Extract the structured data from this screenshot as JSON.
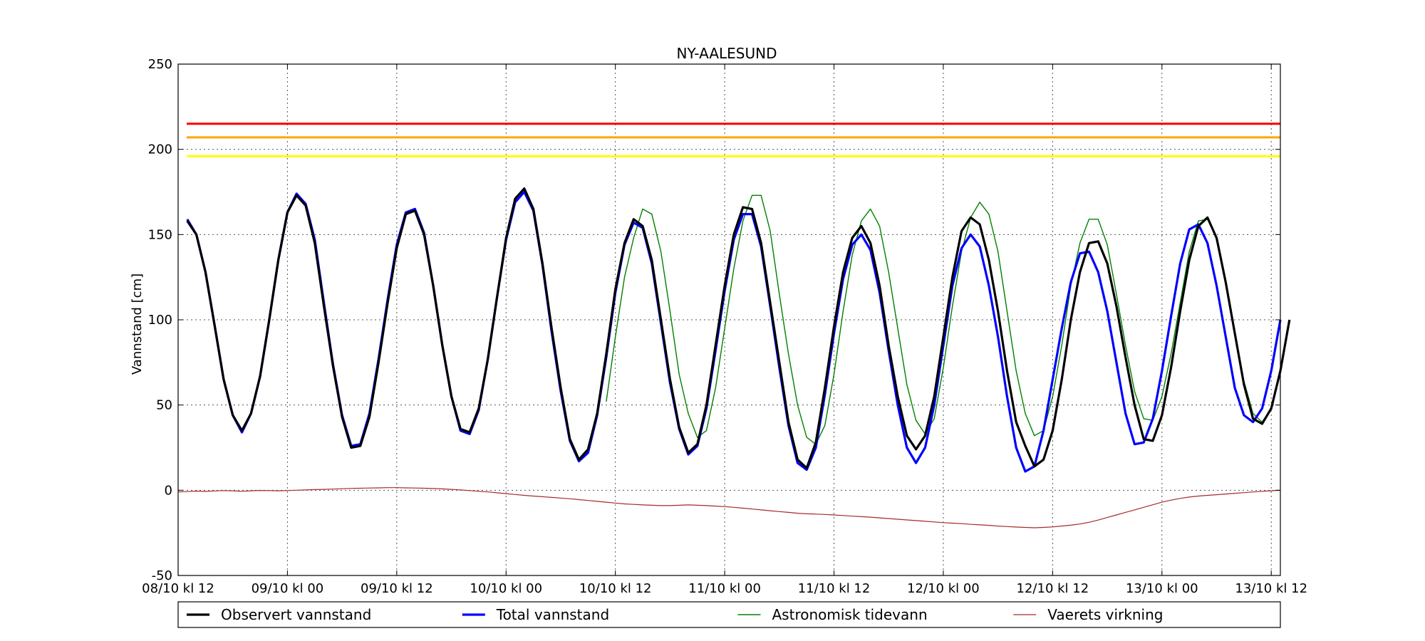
{
  "chart_data": {
    "type": "line",
    "title": "NY-AALESUND",
    "xlabel": "",
    "ylabel": "Vannstand [cm]",
    "ylim": [
      -50,
      250
    ],
    "xlim": [
      0,
      121
    ],
    "x_unit": "hours since 08/10 kl 12",
    "x_ticks": [
      {
        "x": 0,
        "label": "08/10 kl 12"
      },
      {
        "x": 12,
        "label": "09/10 kl 00"
      },
      {
        "x": 24,
        "label": "09/10 kl 12"
      },
      {
        "x": 36,
        "label": "10/10 kl 00"
      },
      {
        "x": 48,
        "label": "10/10 kl 12"
      },
      {
        "x": 60,
        "label": "11/10 kl 00"
      },
      {
        "x": 72,
        "label": "11/10 kl 12"
      },
      {
        "x": 84,
        "label": "12/10 kl 00"
      },
      {
        "x": 96,
        "label": "12/10 kl 12"
      },
      {
        "x": 108,
        "label": "13/10 kl 00"
      },
      {
        "x": 120,
        "label": "13/10 kl 12"
      }
    ],
    "y_ticks": [
      -50,
      0,
      50,
      100,
      150,
      200,
      250
    ],
    "grid": true,
    "legend_position": "bottom",
    "thresholds": [
      {
        "value": 215,
        "color": "#ff0000"
      },
      {
        "value": 207,
        "color": "#ffa500"
      },
      {
        "value": 196,
        "color": "#ffff00"
      }
    ],
    "series": [
      {
        "name": "Observert vannstand",
        "color": "#000000",
        "x_start": 1,
        "x_end": 121,
        "x_step": 1,
        "values": [
          158,
          150,
          128,
          97,
          65,
          44,
          35,
          45,
          67,
          100,
          135,
          163,
          173,
          167,
          145,
          108,
          73,
          43,
          25,
          26,
          43,
          75,
          110,
          142,
          162,
          164,
          150,
          120,
          85,
          55,
          36,
          34,
          48,
          77,
          113,
          148,
          171,
          177,
          165,
          133,
          95,
          60,
          30,
          18,
          24,
          45,
          80,
          118,
          145,
          159,
          155,
          135,
          100,
          65,
          37,
          22,
          27,
          50,
          85,
          120,
          150,
          166,
          165,
          145,
          110,
          75,
          40,
          18,
          13,
          28,
          60,
          96,
          128,
          148,
          155,
          145,
          120,
          85,
          55,
          32,
          24,
          32,
          55,
          90,
          125,
          152,
          160,
          156,
          135,
          105,
          70,
          40,
          26,
          14,
          18,
          35,
          65,
          100,
          128,
          145,
          146,
          133,
          108,
          78,
          50,
          30,
          29,
          44,
          72,
          105,
          135,
          155,
          160,
          148,
          122,
          92,
          62,
          42,
          39,
          48,
          70,
          100
        ]
      },
      {
        "name": "Total vannstand",
        "color": "#0000ff",
        "x_start": 1,
        "x_end": 121,
        "x_step": 1,
        "values": [
          159,
          150,
          128,
          97,
          65,
          44,
          34,
          45,
          67,
          100,
          135,
          163,
          174,
          168,
          147,
          110,
          74,
          44,
          26,
          27,
          45,
          77,
          112,
          144,
          163,
          165,
          151,
          120,
          85,
          55,
          35,
          33,
          47,
          77,
          113,
          147,
          169,
          175,
          164,
          132,
          93,
          58,
          29,
          17,
          22,
          44,
          78,
          116,
          144,
          157,
          154,
          133,
          98,
          63,
          36,
          21,
          26,
          48,
          82,
          117,
          147,
          162,
          162,
          143,
          108,
          72,
          38,
          16,
          12,
          25,
          56,
          92,
          124,
          144,
          150,
          141,
          116,
          82,
          50,
          25,
          16,
          25,
          50,
          85,
          120,
          142,
          150,
          143,
          120,
          90,
          55,
          25,
          11,
          14,
          35,
          65,
          95,
          122,
          139,
          140,
          128,
          105,
          75,
          45,
          27,
          28,
          42,
          70,
          102,
          133,
          153,
          156,
          145,
          120,
          90,
          60,
          44,
          40,
          48,
          70,
          100
        ]
      },
      {
        "name": "Astronomisk tidevann",
        "color": "#008000",
        "x_start": 47,
        "x_end": 121,
        "x_step": 1,
        "values": [
          52,
          90,
          125,
          148,
          165,
          162,
          140,
          105,
          68,
          45,
          31,
          35,
          60,
          95,
          130,
          158,
          173,
          173,
          152,
          115,
          80,
          50,
          31,
          27,
          38,
          68,
          105,
          138,
          158,
          165,
          155,
          128,
          95,
          62,
          41,
          33,
          42,
          72,
          108,
          140,
          160,
          169,
          162,
          140,
          105,
          70,
          45,
          32,
          35,
          55,
          85,
          120,
          145,
          159,
          159,
          144,
          115,
          85,
          58,
          42,
          41,
          55,
          80,
          110,
          140,
          158,
          159,
          148,
          122,
          92,
          64,
          45,
          40,
          48,
          70
        ]
      },
      {
        "name": "Vaerets virkning",
        "color": "#a52a2a",
        "x_start": 0,
        "x_end": 121,
        "x_step": 1,
        "values": [
          -1,
          -0.8,
          -0.5,
          -0.7,
          -0.4,
          -0.2,
          -0.3,
          -0.6,
          -0.3,
          -0.1,
          -0.2,
          -0.3,
          -0.2,
          0,
          0.2,
          0.4,
          0.5,
          0.7,
          0.9,
          1.1,
          1.2,
          1.3,
          1.4,
          1.5,
          1.5,
          1.4,
          1.3,
          1.2,
          1,
          0.8,
          0.5,
          0.2,
          -0.2,
          -0.6,
          -1,
          -1.5,
          -2,
          -2.5,
          -3,
          -3.4,
          -3.8,
          -4.2,
          -4.6,
          -5,
          -5.5,
          -6,
          -6.5,
          -7,
          -7.5,
          -8,
          -8.3,
          -8.6,
          -8.8,
          -9,
          -9,
          -8.8,
          -8.6,
          -8.8,
          -9,
          -9.3,
          -9.6,
          -10,
          -10.5,
          -11,
          -11.5,
          -12,
          -12.5,
          -13,
          -13.5,
          -13.8,
          -14,
          -14.2,
          -14.5,
          -14.8,
          -15.2,
          -15.5,
          -15.8,
          -16.2,
          -16.6,
          -17,
          -17.4,
          -17.8,
          -18.2,
          -18.6,
          -19,
          -19.3,
          -19.6,
          -20,
          -20.3,
          -20.6,
          -21,
          -21.3,
          -21.6,
          -21.8,
          -22,
          -21.8,
          -21.5,
          -21,
          -20.5,
          -19.8,
          -18.8,
          -17.5,
          -16,
          -14.5,
          -13,
          -11.5,
          -10,
          -8.5,
          -7,
          -5.8,
          -4.8,
          -4,
          -3.4,
          -3,
          -2.6,
          -2.2,
          -1.8,
          -1.4,
          -1,
          -0.6,
          -0.3,
          0
        ]
      }
    ]
  }
}
